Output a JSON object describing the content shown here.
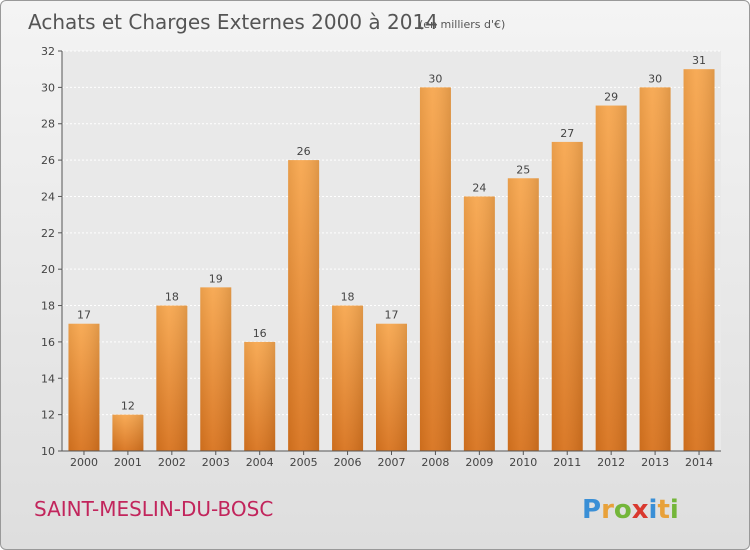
{
  "chart_data": {
    "type": "bar",
    "title": "Achats et Charges Externes 2000 à 2014",
    "subtitle": "(en milliers d'€)",
    "categories": [
      "2000",
      "2001",
      "2002",
      "2003",
      "2004",
      "2005",
      "2006",
      "2007",
      "2008",
      "2009",
      "2010",
      "2011",
      "2012",
      "2013",
      "2014"
    ],
    "values": [
      17,
      12,
      18,
      19,
      16,
      26,
      18,
      17,
      30,
      24,
      25,
      27,
      29,
      30,
      31
    ],
    "ylim": [
      10,
      32
    ],
    "yticks": [
      10,
      12,
      14,
      16,
      18,
      20,
      22,
      24,
      26,
      28,
      30,
      32
    ],
    "xlabel": "",
    "ylabel": "",
    "grid": true,
    "bar_color_top": "#f7a74f",
    "bar_color_bottom": "#d8731e"
  },
  "footer": {
    "commune": "SAINT-MESLIN-DU-BOSC",
    "logo": "Proxiti"
  },
  "colors": {
    "commune_text": "#c2255c",
    "logo_p": "#3a8fd6",
    "logo_r": "#e8a13a",
    "logo_o": "#74b63a",
    "logo_x": "#d9392f",
    "logo_i": "#3a8fd6",
    "logo_t": "#e8a13a",
    "logo_i2": "#74b63a"
  }
}
